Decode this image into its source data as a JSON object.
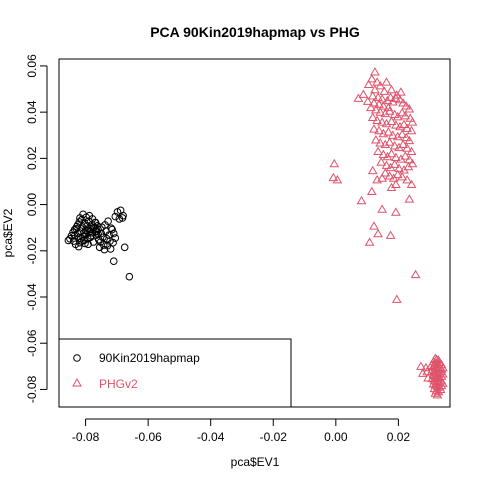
{
  "chart_data": {
    "type": "scatter",
    "title": "PCA 90Kin2019hapmap vs PHG",
    "xlabel": "pca$EV1",
    "ylabel": "pca$EV2",
    "xlim": [
      -0.0885,
      0.0365
    ],
    "ylim": [
      -0.0876,
      0.063
    ],
    "xticks": [
      -0.08,
      -0.06,
      -0.04,
      -0.02,
      0.0,
      0.02
    ],
    "xtick_labels": [
      "-0.08",
      "-0.06",
      "-0.04",
      "-0.02",
      "0.00",
      "0.02"
    ],
    "yticks": [
      -0.08,
      -0.06,
      -0.04,
      -0.02,
      0.0,
      0.02,
      0.04,
      0.06
    ],
    "ytick_labels": [
      "-0.08",
      "-0.06",
      "-0.04",
      "-0.02",
      "0.00",
      "0.02",
      "0.04",
      "0.06"
    ],
    "grid": false,
    "legend_position": "bottom-left",
    "series": [
      {
        "name": "90Kin2019hapmap",
        "marker": "circle",
        "color": "#000000",
        "points": [
          [
            -0.0855,
            -0.0155
          ],
          [
            -0.085,
            -0.0148
          ],
          [
            -0.084,
            -0.012
          ],
          [
            -0.0838,
            -0.0158
          ],
          [
            -0.0835,
            -0.0135
          ],
          [
            -0.083,
            -0.0105
          ],
          [
            -0.0828,
            -0.0095
          ],
          [
            -0.0825,
            -0.0125
          ],
          [
            -0.0822,
            -0.0145
          ],
          [
            -0.082,
            -0.0075
          ],
          [
            -0.0818,
            -0.0165
          ],
          [
            -0.0815,
            -0.0115
          ],
          [
            -0.0812,
            -0.0065
          ],
          [
            -0.081,
            -0.0098
          ],
          [
            -0.0808,
            -0.0138
          ],
          [
            -0.0805,
            -0.0155
          ],
          [
            -0.0803,
            -0.0082
          ],
          [
            -0.08,
            -0.0112
          ],
          [
            -0.0798,
            -0.0128
          ],
          [
            -0.0795,
            -0.0092
          ],
          [
            -0.0793,
            -0.0148
          ],
          [
            -0.079,
            -0.0072
          ],
          [
            -0.0788,
            -0.0118
          ],
          [
            -0.0785,
            -0.0105
          ],
          [
            -0.0783,
            -0.0135
          ],
          [
            -0.078,
            -0.0088
          ],
          [
            -0.0778,
            -0.0122
          ],
          [
            -0.0775,
            -0.0162
          ],
          [
            -0.0772,
            -0.0098
          ],
          [
            -0.077,
            -0.0078
          ],
          [
            -0.0768,
            -0.0115
          ],
          [
            -0.0765,
            -0.0132
          ],
          [
            -0.0762,
            -0.0092
          ],
          [
            -0.076,
            -0.0108
          ],
          [
            -0.0758,
            -0.0152
          ],
          [
            -0.0755,
            -0.0185
          ],
          [
            -0.075,
            -0.0125
          ],
          [
            -0.0745,
            -0.0142
          ],
          [
            -0.074,
            -0.0195
          ],
          [
            -0.0735,
            -0.0115
          ],
          [
            -0.073,
            -0.0178
          ],
          [
            -0.0725,
            -0.0132
          ],
          [
            -0.072,
            -0.0192
          ],
          [
            -0.0715,
            -0.0108
          ],
          [
            -0.071,
            -0.0125
          ],
          [
            -0.0705,
            -0.0145
          ],
          [
            -0.0835,
            -0.0108
          ],
          [
            -0.0825,
            -0.0088
          ],
          [
            -0.0815,
            -0.0148
          ],
          [
            -0.0805,
            -0.0122
          ],
          [
            -0.0795,
            -0.0112
          ],
          [
            -0.0785,
            -0.0142
          ],
          [
            -0.0775,
            -0.0102
          ],
          [
            -0.0765,
            -0.0118
          ],
          [
            -0.0818,
            -0.0058
          ],
          [
            -0.0808,
            -0.0042
          ],
          [
            -0.0798,
            -0.0055
          ],
          [
            -0.0788,
            -0.0048
          ],
          [
            -0.0778,
            -0.0062
          ],
          [
            -0.0768,
            -0.0078
          ],
          [
            -0.076,
            -0.0128
          ],
          [
            -0.0752,
            -0.0162
          ],
          [
            -0.0742,
            -0.0175
          ],
          [
            -0.0732,
            -0.0148
          ],
          [
            -0.0722,
            -0.0158
          ],
          [
            -0.0712,
            -0.0165
          ],
          [
            -0.0845,
            -0.0135
          ],
          [
            -0.0832,
            -0.0172
          ],
          [
            -0.0822,
            -0.0182
          ],
          [
            -0.0812,
            -0.0158
          ],
          [
            -0.0802,
            -0.0168
          ],
          [
            -0.0792,
            -0.0172
          ],
          [
            -0.0705,
            -0.0052
          ],
          [
            -0.0698,
            -0.0032
          ],
          [
            -0.0688,
            -0.0025
          ],
          [
            -0.068,
            -0.0048
          ],
          [
            -0.0682,
            -0.0058
          ],
          [
            -0.0692,
            -0.0062
          ],
          [
            -0.0675,
            -0.0185
          ],
          [
            -0.071,
            -0.0245
          ],
          [
            -0.066,
            -0.0312
          ],
          [
            -0.0748,
            -0.0098
          ],
          [
            -0.0738,
            -0.0088
          ],
          [
            -0.0728,
            -0.0072
          ],
          [
            -0.0718,
            -0.0102
          ]
        ]
      },
      {
        "name": "PHGv2",
        "marker": "triangle",
        "color": "#DF536B",
        "points": [
          [
            0.0125,
            0.0572
          ],
          [
            0.0115,
            0.0542
          ],
          [
            0.0132,
            0.0528
          ],
          [
            0.0105,
            0.0518
          ],
          [
            0.0142,
            0.0512
          ],
          [
            0.0125,
            0.0495
          ],
          [
            0.0155,
            0.0488
          ],
          [
            0.0088,
            0.0475
          ],
          [
            0.0118,
            0.0468
          ],
          [
            0.0135,
            0.0462
          ],
          [
            0.0148,
            0.0455
          ],
          [
            0.0165,
            0.0448
          ],
          [
            0.0175,
            0.0462
          ],
          [
            0.0072,
            0.0458
          ],
          [
            0.0102,
            0.0445
          ],
          [
            0.0122,
            0.0438
          ],
          [
            0.0138,
            0.0432
          ],
          [
            0.0152,
            0.0425
          ],
          [
            0.0168,
            0.0418
          ],
          [
            0.0182,
            0.0442
          ],
          [
            0.0192,
            0.0458
          ],
          [
            0.0205,
            0.0452
          ],
          [
            0.0215,
            0.0438
          ],
          [
            0.0225,
            0.0425
          ],
          [
            0.0235,
            0.0412
          ],
          [
            0.0112,
            0.0418
          ],
          [
            0.0128,
            0.0408
          ],
          [
            0.0142,
            0.0398
          ],
          [
            0.0158,
            0.0392
          ],
          [
            0.0172,
            0.0402
          ],
          [
            0.0188,
            0.0388
          ],
          [
            0.0198,
            0.0378
          ],
          [
            0.0212,
            0.0395
          ],
          [
            0.0222,
            0.0382
          ],
          [
            0.0238,
            0.0372
          ],
          [
            0.0245,
            0.0355
          ],
          [
            0.0118,
            0.0375
          ],
          [
            0.0132,
            0.0362
          ],
          [
            0.0148,
            0.0355
          ],
          [
            0.0162,
            0.0348
          ],
          [
            0.0178,
            0.0358
          ],
          [
            0.0192,
            0.0342
          ],
          [
            0.0205,
            0.0335
          ],
          [
            0.0218,
            0.0345
          ],
          [
            0.0228,
            0.0328
          ],
          [
            0.0242,
            0.0318
          ],
          [
            0.0122,
            0.0325
          ],
          [
            0.0138,
            0.0318
          ],
          [
            0.0152,
            0.0305
          ],
          [
            0.0168,
            0.0312
          ],
          [
            0.0182,
            0.0298
          ],
          [
            0.0198,
            0.0292
          ],
          [
            0.0212,
            0.0302
          ],
          [
            0.0225,
            0.0288
          ],
          [
            0.0235,
            0.0275
          ],
          [
            0.0128,
            0.0278
          ],
          [
            0.0142,
            0.0265
          ],
          [
            0.0158,
            0.0258
          ],
          [
            0.0172,
            0.0268
          ],
          [
            0.0188,
            0.0252
          ],
          [
            0.0202,
            0.0245
          ],
          [
            0.0215,
            0.0258
          ],
          [
            0.0228,
            0.0242
          ],
          [
            0.0242,
            0.0228
          ],
          [
            0.0135,
            0.0228
          ],
          [
            0.0152,
            0.0215
          ],
          [
            0.0165,
            0.0205
          ],
          [
            0.0178,
            0.0218
          ],
          [
            0.0192,
            0.0202
          ],
          [
            0.0208,
            0.0195
          ],
          [
            0.0222,
            0.0208
          ],
          [
            0.0235,
            0.0192
          ],
          [
            0.0145,
            0.0182
          ],
          [
            0.0162,
            0.0168
          ],
          [
            0.0175,
            0.0158
          ],
          [
            0.0188,
            0.0172
          ],
          [
            0.0202,
            0.0155
          ],
          [
            0.0218,
            0.0148
          ],
          [
            0.0232,
            0.0162
          ],
          [
            0.0245,
            0.0175
          ],
          [
            0.0158,
            0.0135
          ],
          [
            0.0172,
            0.0122
          ],
          [
            0.0185,
            0.0112
          ],
          [
            0.0198,
            0.0128
          ],
          [
            0.0212,
            0.0118
          ],
          [
            0.0228,
            0.0105
          ],
          [
            0.0242,
            0.0085
          ],
          [
            0.0192,
            0.0085
          ],
          [
            0.0178,
            0.0072
          ],
          [
            0.0148,
            0.0112
          ],
          [
            0.0132,
            0.0105
          ],
          [
            0.0118,
            0.0145
          ],
          [
            -0.0005,
            0.0175
          ],
          [
            -0.0008,
            0.0115
          ],
          [
            0.0005,
            0.0105
          ],
          [
            0.0115,
            0.0055
          ],
          [
            0.0082,
            0.0015
          ],
          [
            0.0235,
            0.0022
          ],
          [
            0.0148,
            -0.0022
          ],
          [
            0.0192,
            -0.0035
          ],
          [
            0.0122,
            -0.0095
          ],
          [
            0.0135,
            -0.0128
          ],
          [
            0.0175,
            -0.0135
          ],
          [
            0.0108,
            -0.0165
          ],
          [
            0.0195,
            -0.0412
          ],
          [
            0.0255,
            -0.0305
          ],
          [
            0.0162,
            0.0528
          ],
          [
            0.0178,
            0.0495
          ],
          [
            0.0195,
            0.0472
          ],
          [
            0.0208,
            0.0485
          ],
          [
            0.0318,
            -0.0668
          ],
          [
            0.0322,
            -0.0672
          ],
          [
            0.0328,
            -0.0675
          ],
          [
            0.0312,
            -0.0682
          ],
          [
            0.0318,
            -0.0688
          ],
          [
            0.0325,
            -0.0692
          ],
          [
            0.0332,
            -0.0685
          ],
          [
            0.0338,
            -0.0695
          ],
          [
            0.0305,
            -0.0698
          ],
          [
            0.0312,
            -0.0702
          ],
          [
            0.0318,
            -0.0708
          ],
          [
            0.0325,
            -0.0712
          ],
          [
            0.0332,
            -0.0705
          ],
          [
            0.0338,
            -0.0715
          ],
          [
            0.0342,
            -0.0708
          ],
          [
            0.0308,
            -0.0718
          ],
          [
            0.0315,
            -0.0722
          ],
          [
            0.0322,
            -0.0728
          ],
          [
            0.0328,
            -0.0732
          ],
          [
            0.0335,
            -0.0725
          ],
          [
            0.0342,
            -0.0735
          ],
          [
            0.0312,
            -0.0738
          ],
          [
            0.0318,
            -0.0742
          ],
          [
            0.0325,
            -0.0748
          ],
          [
            0.0332,
            -0.0752
          ],
          [
            0.0338,
            -0.0745
          ],
          [
            0.0308,
            -0.0755
          ],
          [
            0.0315,
            -0.0762
          ],
          [
            0.0322,
            -0.0768
          ],
          [
            0.0328,
            -0.0772
          ],
          [
            0.0335,
            -0.0765
          ],
          [
            0.0342,
            -0.0775
          ],
          [
            0.0312,
            -0.0778
          ],
          [
            0.0318,
            -0.0782
          ],
          [
            0.0325,
            -0.0788
          ],
          [
            0.0332,
            -0.0792
          ],
          [
            0.0338,
            -0.0785
          ],
          [
            0.0315,
            -0.0798
          ],
          [
            0.0322,
            -0.0805
          ],
          [
            0.0328,
            -0.0812
          ],
          [
            0.0335,
            -0.0802
          ],
          [
            0.0318,
            -0.0818
          ],
          [
            0.0325,
            -0.0825
          ],
          [
            0.0292,
            -0.0725
          ],
          [
            0.0288,
            -0.0708
          ],
          [
            0.0295,
            -0.0752
          ],
          [
            0.0272,
            -0.0702
          ],
          [
            0.0278,
            -0.0732
          ]
        ]
      }
    ]
  }
}
